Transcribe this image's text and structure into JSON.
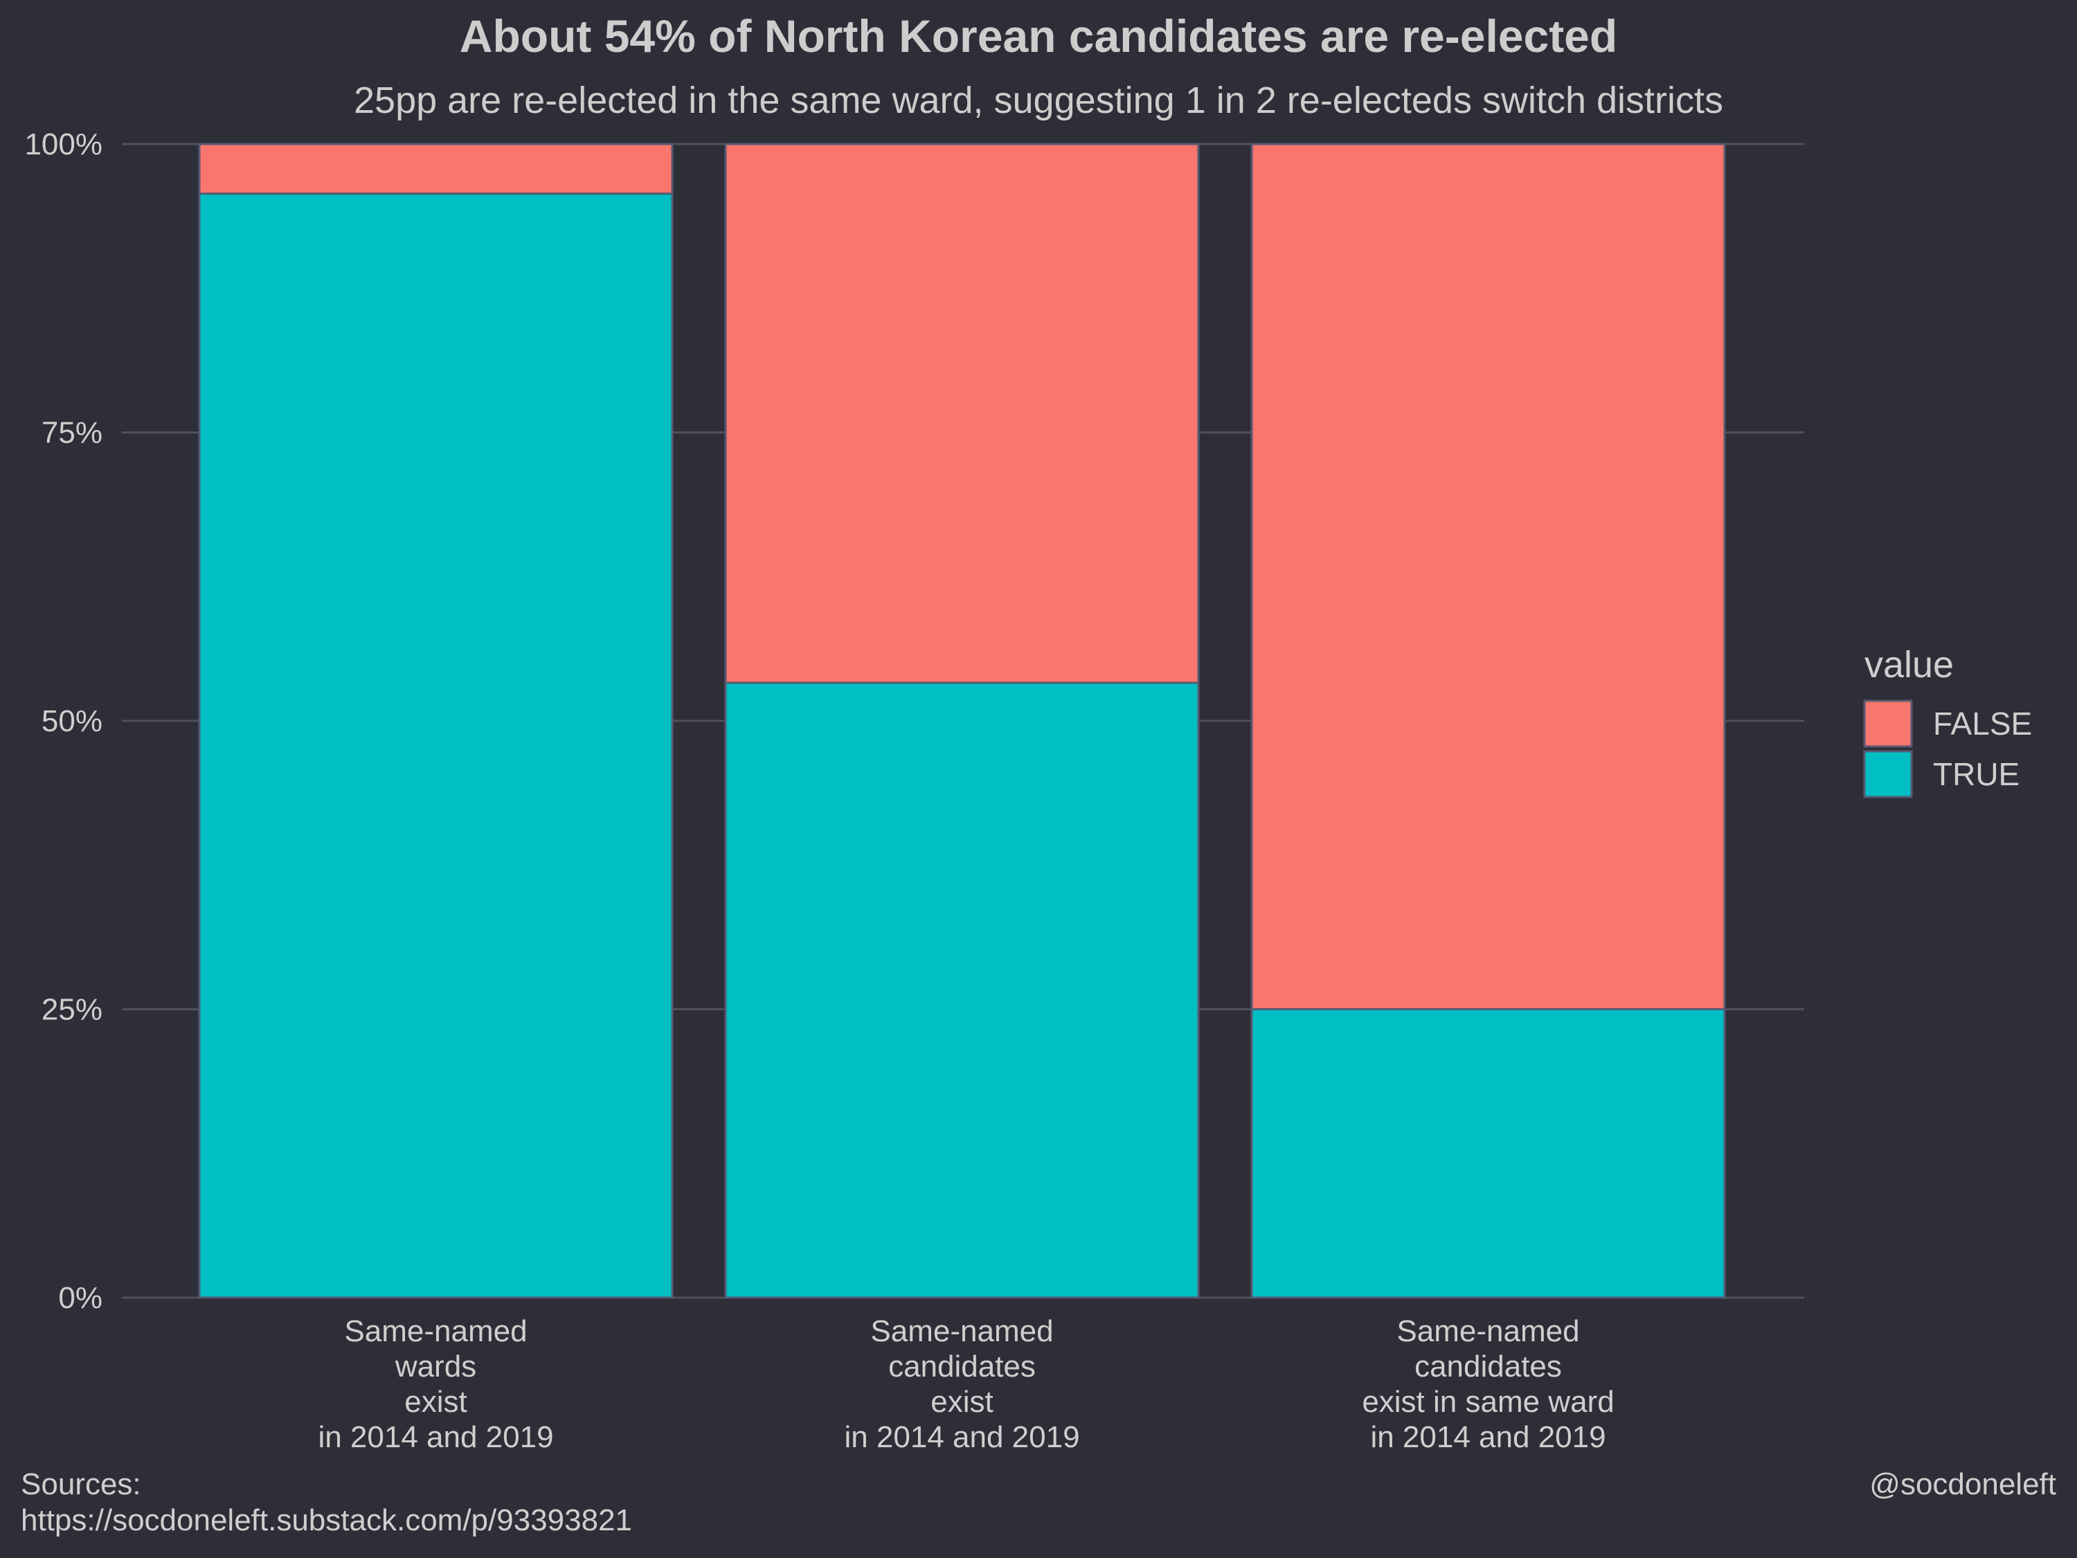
{
  "chart_data": {
    "type": "bar",
    "stacked": true,
    "title": "About 54% of North Korean candidates are re-elected",
    "subtitle": "25pp are re-elected in the same ward, suggesting 1 in 2 re-electeds switch districts",
    "categories": [
      [
        "Same-named",
        "wards",
        "exist",
        "in 2014 and 2019"
      ],
      [
        "Same-named",
        "candidates",
        "exist",
        "in 2014 and 2019"
      ],
      [
        "Same-named",
        "candidates",
        "exist in same ward",
        "in 2014 and 2019"
      ]
    ],
    "series": [
      {
        "name": "TRUE",
        "color": "#00bfc4",
        "values": [
          0.957,
          0.533,
          0.25
        ]
      },
      {
        "name": "FALSE",
        "color": "#f8766d",
        "values": [
          0.043,
          0.467,
          0.75
        ]
      }
    ],
    "ylim": [
      0,
      1
    ],
    "yticks": [
      0,
      0.25,
      0.5,
      0.75,
      1
    ],
    "ytick_labels": [
      "0%",
      "25%",
      "50%",
      "75%",
      "100%"
    ],
    "legend": {
      "title": "value",
      "position": "right",
      "entries": [
        {
          "label": "FALSE",
          "color": "#f8766d"
        },
        {
          "label": "TRUE",
          "color": "#00bfc4"
        }
      ]
    },
    "grid": true
  },
  "caption": {
    "sources_label": "Sources:",
    "sources_url": "https://socdoneleft.substack.com/p/93393821",
    "handle": "@socdoneleft"
  },
  "colors": {
    "background": "#2e2e38",
    "text": "#cfcfcf",
    "grid": "#50505c",
    "bar_outline": "#555a72"
  }
}
